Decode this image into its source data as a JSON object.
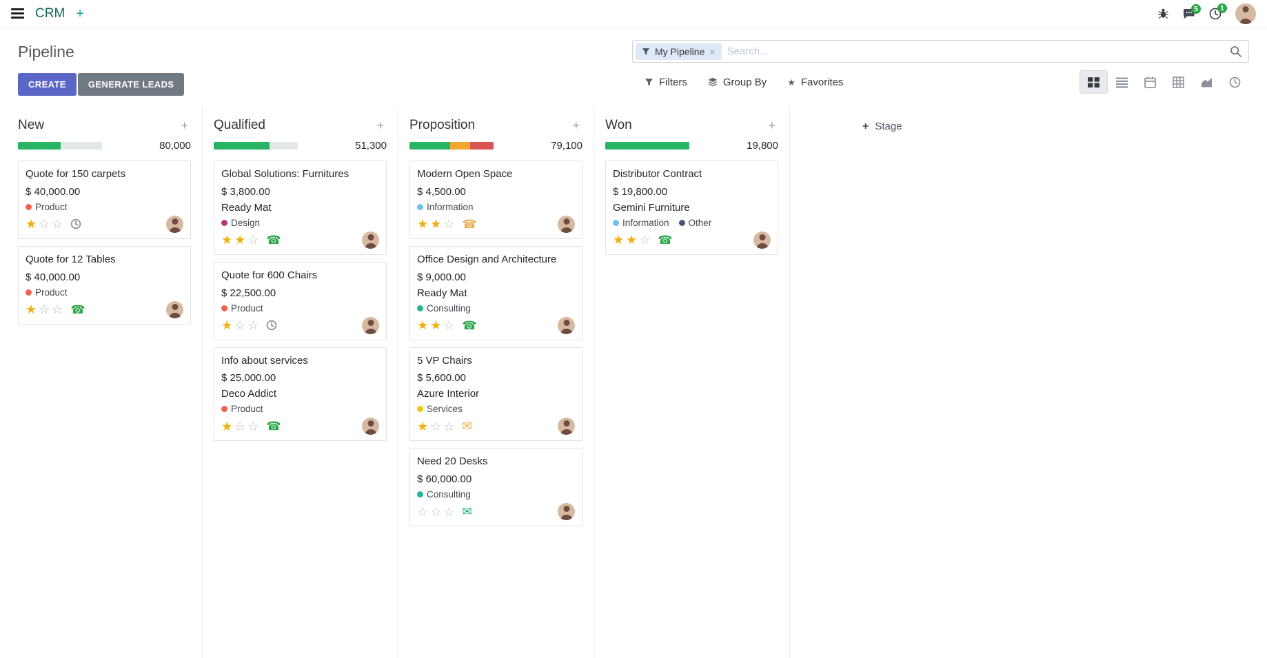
{
  "icons": {
    "plus": "+",
    "close": "×",
    "star_filled": "★",
    "star_empty": "☆",
    "phone": "☎",
    "envelope": "✉",
    "favorite_star": "★"
  },
  "navbar": {
    "app_name": "CRM",
    "badges": {
      "messages": "5",
      "activities": "1"
    }
  },
  "control_panel": {
    "title": "Pipeline",
    "create_label": "CREATE",
    "generate_leads_label": "GENERATE LEADS",
    "search": {
      "facet_label": "My Pipeline",
      "placeholder": "Search..."
    },
    "filters_label": "Filters",
    "group_by_label": "Group By",
    "favorites_label": "Favorites"
  },
  "board": {
    "add_stage_label": "Stage",
    "columns": [
      {
        "name": "New",
        "total": "80,000",
        "progress": [
          {
            "color": "#28b463",
            "pct": 51
          }
        ],
        "cards": [
          {
            "title": "Quote for 150 carpets",
            "amount": "$ 40,000.00",
            "tags": [
              {
                "label": "Product",
                "color": "#f06050"
              }
            ],
            "stars": 1,
            "activity": {
              "type": "clock",
              "color": "#8a8f98"
            }
          },
          {
            "title": "Quote for 12 Tables",
            "amount": "$ 40,000.00",
            "tags": [
              {
                "label": "Product",
                "color": "#f06050"
              }
            ],
            "stars": 1,
            "activity": {
              "type": "phone",
              "color": "#28a745"
            }
          }
        ]
      },
      {
        "name": "Qualified",
        "total": "51,300",
        "progress": [
          {
            "color": "#28b463",
            "pct": 66
          }
        ],
        "cards": [
          {
            "title": "Global Solutions: Furnitures",
            "amount": "$ 3,800.00",
            "partner": "Ready Mat",
            "tags": [
              {
                "label": "Design",
                "color": "#b5367a"
              }
            ],
            "stars": 2,
            "activity": {
              "type": "phone",
              "color": "#28a745"
            }
          },
          {
            "title": "Quote for 600 Chairs",
            "amount": "$ 22,500.00",
            "tags": [
              {
                "label": "Product",
                "color": "#f06050"
              }
            ],
            "stars": 1,
            "activity": {
              "type": "clock",
              "color": "#8a8f98"
            }
          },
          {
            "title": "Info about services",
            "amount": "$ 25,000.00",
            "partner": "Deco Addict",
            "tags": [
              {
                "label": "Product",
                "color": "#f06050"
              }
            ],
            "stars": 1,
            "activity": {
              "type": "phone",
              "color": "#28a745"
            }
          }
        ]
      },
      {
        "name": "Proposition",
        "total": "79,100",
        "progress": [
          {
            "color": "#28b463",
            "pct": 48
          },
          {
            "color": "#f0a732",
            "pct": 24
          },
          {
            "color": "#d9534f",
            "pct": 28
          }
        ],
        "cards": [
          {
            "title": "Modern Open Space",
            "amount": "$ 4,500.00",
            "tags": [
              {
                "label": "Information",
                "color": "#6cc1ed"
              }
            ],
            "stars": 2,
            "activity": {
              "type": "phone",
              "color": "#f0ad4e"
            }
          },
          {
            "title": "Office Design and Architecture",
            "amount": "$ 9,000.00",
            "partner": "Ready Mat",
            "tags": [
              {
                "label": "Consulting",
                "color": "#21b799"
              }
            ],
            "stars": 2,
            "activity": {
              "type": "phone",
              "color": "#28a745"
            }
          },
          {
            "title": "5 VP Chairs",
            "amount": "$ 5,600.00",
            "partner": "Azure Interior",
            "tags": [
              {
                "label": "Services",
                "color": "#f0c918"
              }
            ],
            "stars": 1,
            "activity": {
              "type": "envelope",
              "color": "#e8a944"
            }
          },
          {
            "title": "Need 20 Desks",
            "amount": "$ 60,000.00",
            "tags": [
              {
                "label": "Consulting",
                "color": "#21b799"
              }
            ],
            "stars": 0,
            "activity": {
              "type": "envelope",
              "color": "#1fa97c"
            }
          }
        ]
      },
      {
        "name": "Won",
        "total": "19,800",
        "progress": [
          {
            "color": "#28b463",
            "pct": 100
          }
        ],
        "cards": [
          {
            "title": "Distributor Contract",
            "amount": "$ 19,800.00",
            "partner": "Gemini Furniture",
            "tags": [
              {
                "label": "Information",
                "color": "#6cc1ed"
              },
              {
                "label": "Other",
                "color": "#475577"
              }
            ],
            "stars": 2,
            "activity": {
              "type": "phone",
              "color": "#28a745"
            }
          }
        ]
      }
    ]
  }
}
